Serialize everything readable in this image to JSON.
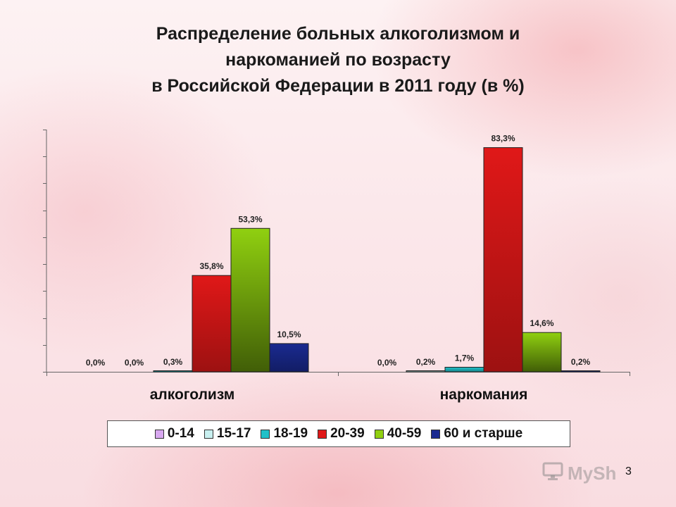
{
  "title_lines": [
    "Распределение больных алкоголизмом и",
    "наркоманией по возрасту",
    "в Российской Федерации в 2011 году (в %)"
  ],
  "slide_number": "3",
  "watermark_text": "MySh",
  "chart_data": {
    "type": "bar",
    "categories": [
      "алкоголизм",
      "наркомания"
    ],
    "series": [
      {
        "name": "0-14",
        "color": "#d8a8f0",
        "values": [
          0.0,
          0.0
        ],
        "labels": [
          "0,0%",
          "0,0%"
        ]
      },
      {
        "name": "15-17",
        "color": "#c8f0f0",
        "values": [
          0.0,
          0.2
        ],
        "labels": [
          "0,0%",
          "0,2%"
        ]
      },
      {
        "name": "18-19",
        "color": "#20c0c8",
        "values": [
          0.3,
          1.7
        ],
        "labels": [
          "0,3%",
          "1,7%"
        ]
      },
      {
        "name": "20-39",
        "color": "#e01818",
        "values": [
          35.8,
          83.3
        ],
        "labels": [
          "35,8%",
          "83,3%"
        ]
      },
      {
        "name": "40-59",
        "color": "#90d010",
        "values": [
          53.3,
          14.6
        ],
        "labels": [
          "53,3%",
          "14,6%"
        ]
      },
      {
        "name": "60 и старше",
        "color": "#1a2a90",
        "values": [
          10.5,
          0.2
        ],
        "labels": [
          "10,5%",
          "0,2%"
        ]
      }
    ],
    "ylim": [
      0,
      90
    ],
    "y_tick_step": 10,
    "y_tick_labels_shown": false,
    "grid": false,
    "legend_position": "bottom"
  }
}
